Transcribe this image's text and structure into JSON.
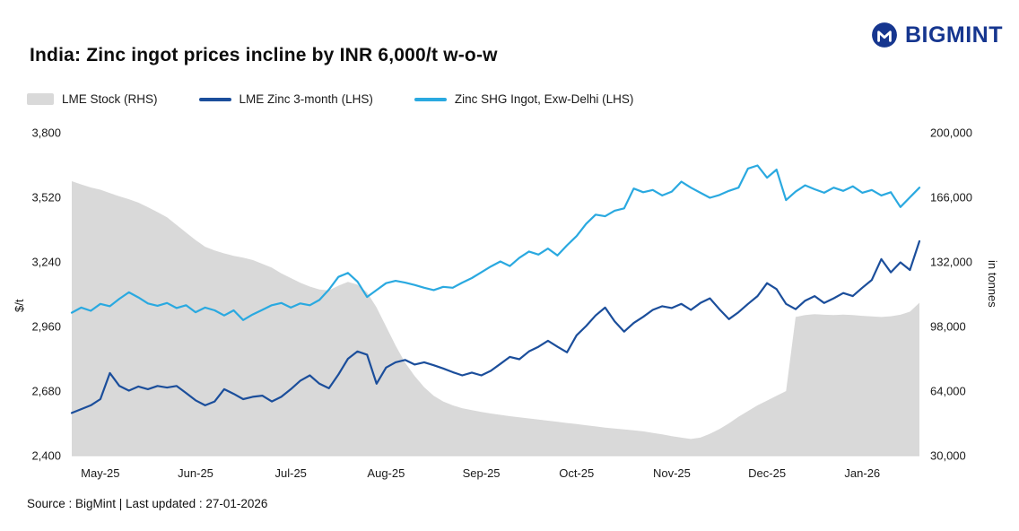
{
  "header": {
    "title": "India: Zinc ingot prices incline by INR 6,000/t w-o-w",
    "brand": "BIGMINT"
  },
  "legend": [
    {
      "label": "LME Stock (RHS)",
      "type": "area",
      "color": "#d9d9d9"
    },
    {
      "label": "LME Zinc 3-month (LHS)",
      "type": "line",
      "color": "#1b4e9b"
    },
    {
      "label": "Zinc SHG Ingot, Exw-Delhi (LHS)",
      "type": "line",
      "color": "#2aa9e0"
    }
  ],
  "footer": {
    "source": "Source : BigMint | Last updated : 27-01-2026"
  },
  "chart_data": {
    "type": "line+area",
    "title": "India: Zinc ingot prices incline by INR 6,000/t w-o-w",
    "x_axis": {
      "months": [
        "May-25",
        "Jun-25",
        "Jul-25",
        "Aug-25",
        "Sep-25",
        "Oct-25",
        "Nov-25",
        "Dec-25",
        "Jan-26"
      ],
      "label_idx": [
        3,
        13,
        23,
        33,
        43,
        53,
        63,
        73,
        83
      ]
    },
    "y_left": {
      "label": "$/t",
      "min": 2400,
      "max": 3800,
      "tick_values": [
        2400,
        2680,
        2960,
        3240,
        3520,
        3800
      ],
      "tick_labels": [
        "2,400",
        "2,680",
        "2,960",
        "3,240",
        "3,520",
        "3,800"
      ]
    },
    "y_right": {
      "label": "in tonnes",
      "min": 30000,
      "max": 200000,
      "tick_values": [
        30000,
        64000,
        98000,
        132000,
        166000,
        200000
      ],
      "tick_labels": [
        "30,000",
        "64,000",
        "98,000",
        "132,000",
        "166,000",
        "200,000"
      ]
    },
    "series": [
      {
        "name": "LME Stock (RHS)",
        "axis": "right",
        "type": "area",
        "color": "#d9d9d9",
        "values": [
          174500,
          172800,
          171200,
          170000,
          168200,
          166500,
          165000,
          163200,
          160800,
          158200,
          155500,
          151500,
          147500,
          143500,
          140000,
          138000,
          136500,
          135200,
          134200,
          133000,
          131000,
          129000,
          126000,
          123500,
          121000,
          119000,
          117500,
          117000,
          119500,
          121500,
          120000,
          116000,
          108000,
          98000,
          88000,
          79000,
          72000,
          66000,
          61500,
          58500,
          56500,
          55000,
          54000,
          53000,
          52200,
          51500,
          50800,
          50200,
          49600,
          49000,
          48400,
          47800,
          47200,
          46600,
          46000,
          45400,
          44800,
          44300,
          43800,
          43300,
          42800,
          42000,
          41200,
          40300,
          39500,
          38800,
          39500,
          41500,
          44000,
          47000,
          50500,
          53500,
          56500,
          59000,
          61500,
          64000,
          103000,
          104000,
          104500,
          104200,
          104000,
          104300,
          104000,
          103600,
          103300,
          103000,
          103400,
          104200,
          105800,
          110500
        ]
      },
      {
        "name": "LME Zinc 3-month (LHS)",
        "axis": "left",
        "type": "line",
        "color": "#1b4e9b",
        "values": [
          2585,
          2602,
          2618,
          2645,
          2758,
          2702,
          2682,
          2700,
          2688,
          2702,
          2695,
          2702,
          2672,
          2640,
          2618,
          2635,
          2688,
          2668,
          2645,
          2655,
          2660,
          2635,
          2655,
          2688,
          2725,
          2748,
          2712,
          2692,
          2752,
          2820,
          2852,
          2838,
          2712,
          2782,
          2805,
          2815,
          2795,
          2805,
          2792,
          2778,
          2762,
          2748,
          2760,
          2748,
          2768,
          2798,
          2828,
          2818,
          2852,
          2872,
          2898,
          2872,
          2848,
          2922,
          2962,
          3008,
          3042,
          2982,
          2938,
          2975,
          3002,
          3032,
          3048,
          3040,
          3058,
          3032,
          3062,
          3082,
          3035,
          2992,
          3022,
          3058,
          3092,
          3148,
          3122,
          3058,
          3035,
          3072,
          3092,
          3062,
          3082,
          3105,
          3092,
          3128,
          3162,
          3252,
          3195,
          3238,
          3205,
          3330
        ]
      },
      {
        "name": "Zinc SHG Ingot, Exw-Delhi (LHS)",
        "axis": "left",
        "type": "line",
        "color": "#2aa9e0",
        "values": [
          3020,
          3042,
          3028,
          3058,
          3048,
          3080,
          3108,
          3086,
          3060,
          3050,
          3062,
          3040,
          3052,
          3022,
          3042,
          3030,
          3008,
          3030,
          2988,
          3012,
          3032,
          3052,
          3062,
          3042,
          3060,
          3052,
          3075,
          3120,
          3175,
          3192,
          3155,
          3088,
          3118,
          3148,
          3158,
          3150,
          3140,
          3128,
          3118,
          3132,
          3128,
          3150,
          3170,
          3195,
          3220,
          3242,
          3222,
          3258,
          3285,
          3272,
          3298,
          3268,
          3312,
          3352,
          3405,
          3445,
          3438,
          3462,
          3472,
          3558,
          3542,
          3552,
          3528,
          3545,
          3588,
          3562,
          3540,
          3518,
          3530,
          3548,
          3562,
          3645,
          3658,
          3605,
          3640,
          3508,
          3545,
          3572,
          3555,
          3540,
          3562,
          3548,
          3568,
          3540,
          3552,
          3528,
          3542,
          3478,
          3520,
          3562
        ]
      }
    ]
  }
}
